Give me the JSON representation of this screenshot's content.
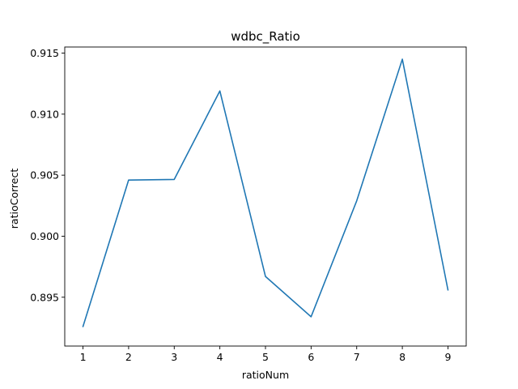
{
  "chart_data": {
    "type": "line",
    "title": "wdbc_Ratio",
    "xlabel": "ratioNum",
    "ylabel": "ratioCorrect",
    "x": [
      1,
      2,
      3,
      4,
      5,
      6,
      7,
      8,
      9
    ],
    "series": [
      {
        "values": [
          0.8926,
          0.9046,
          0.90465,
          0.9119,
          0.8967,
          0.8934,
          0.9029,
          0.9145,
          0.8956
        ],
        "color": "#1f77b4"
      }
    ],
    "xlim": [
      0.6,
      9.4
    ],
    "ylim": [
      0.891,
      0.9155
    ],
    "xticks": [
      1,
      2,
      3,
      4,
      5,
      6,
      7,
      8,
      9
    ],
    "yticks": [
      0.895,
      0.9,
      0.905,
      0.91,
      0.915
    ],
    "ytick_labels": [
      "0.895",
      "0.900",
      "0.905",
      "0.910",
      "0.915"
    ],
    "grid": false,
    "legend": "none"
  }
}
